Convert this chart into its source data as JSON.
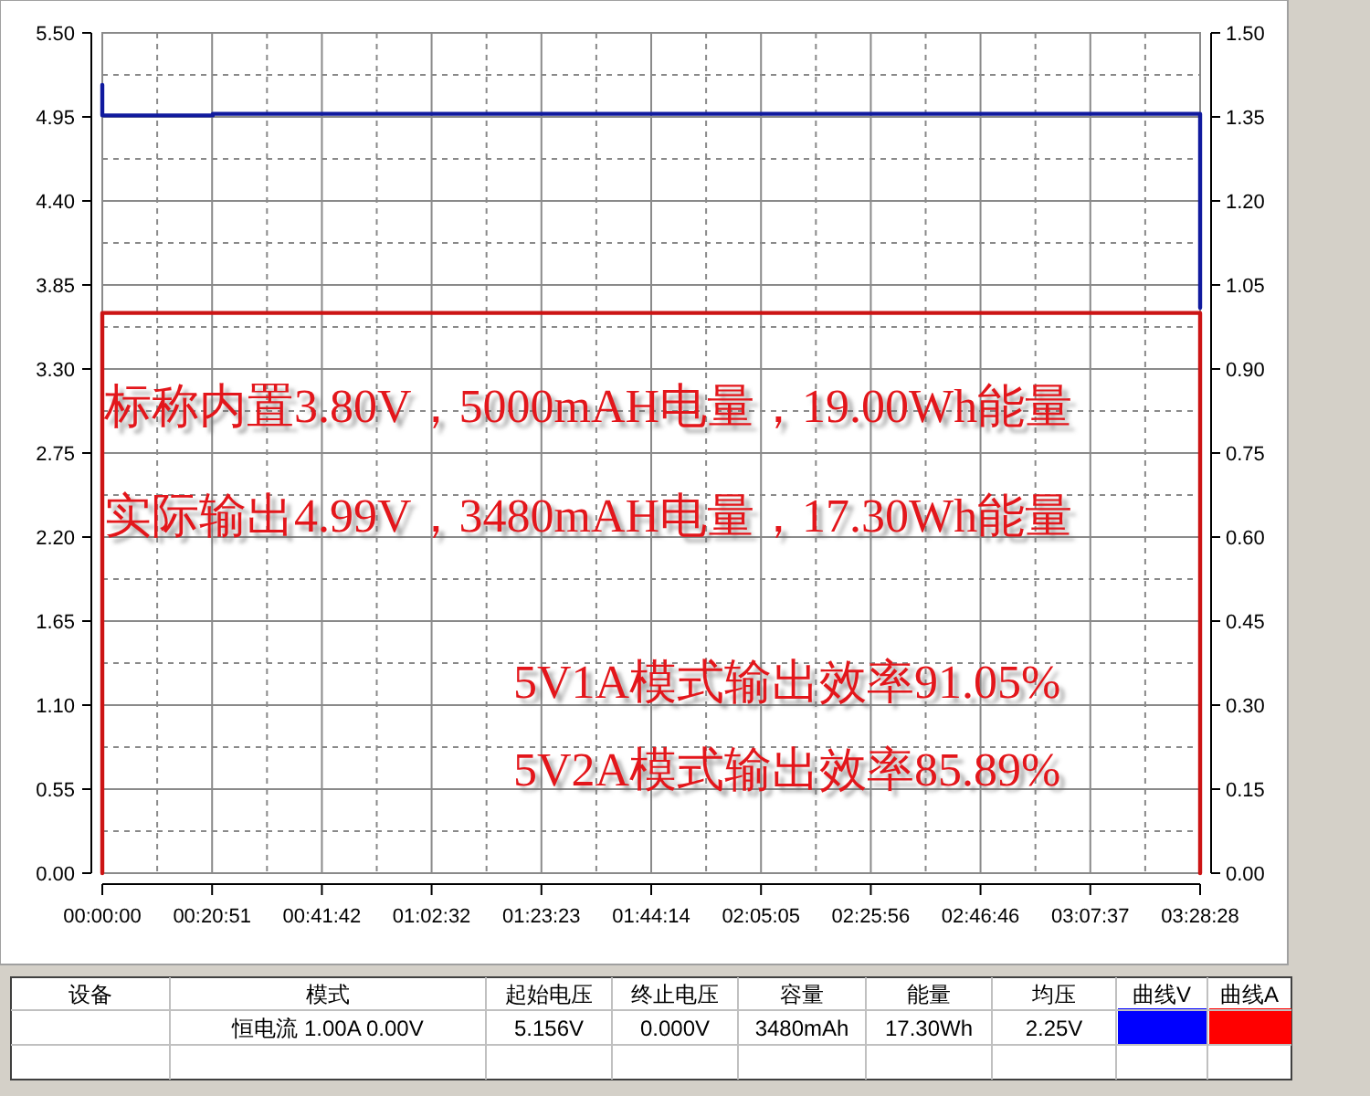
{
  "chart_data": [
    {
      "type": "line",
      "xlim": [
        0,
        3.47444
      ],
      "xticks": [
        {
          "value": 0,
          "label": "00:00:00"
        },
        {
          "value": 0.3475,
          "label": "00:20:51"
        },
        {
          "value": 0.695,
          "label": "00:41:42"
        },
        {
          "value": 1.04222,
          "label": "01:02:32"
        },
        {
          "value": 1.38972,
          "label": "01:23:23"
        },
        {
          "value": 1.73722,
          "label": "01:44:14"
        },
        {
          "value": 2.08472,
          "label": "02:05:05"
        },
        {
          "value": 2.43222,
          "label": "02:25:56"
        },
        {
          "value": 2.77944,
          "label": "02:46:46"
        },
        {
          "value": 3.12694,
          "label": "03:07:37"
        },
        {
          "value": 3.47444,
          "label": "03:28:28"
        }
      ],
      "ylim": [
        0,
        5.5
      ],
      "yticks": [
        {
          "value": 0,
          "label": "0.00"
        },
        {
          "value": 0.55,
          "label": "0.55"
        },
        {
          "value": 1.1,
          "label": "1.10"
        },
        {
          "value": 1.65,
          "label": "1.65"
        },
        {
          "value": 2.2,
          "label": "2.20"
        },
        {
          "value": 2.75,
          "label": "2.75"
        },
        {
          "value": 3.3,
          "label": "3.30"
        },
        {
          "value": 3.85,
          "label": "3.85"
        },
        {
          "value": 4.4,
          "label": "4.40"
        },
        {
          "value": 4.95,
          "label": "4.95"
        },
        {
          "value": 5.5,
          "label": "5.50"
        }
      ],
      "y2lim": [
        0,
        1.5
      ],
      "y2ticks": [
        {
          "value": 0,
          "label": "0.00"
        },
        {
          "value": 0.15,
          "label": "0.15"
        },
        {
          "value": 0.3,
          "label": "0.30"
        },
        {
          "value": 0.45,
          "label": "0.45"
        },
        {
          "value": 0.6,
          "label": "0.60"
        },
        {
          "value": 0.75,
          "label": "0.75"
        },
        {
          "value": 0.9,
          "label": "0.90"
        },
        {
          "value": 1.05,
          "label": "1.05"
        },
        {
          "value": 1.2,
          "label": "1.20"
        },
        {
          "value": 1.35,
          "label": "1.35"
        },
        {
          "value": 1.5,
          "label": "1.50"
        }
      ],
      "grid": true,
      "series": [
        {
          "color": "#101a9e",
          "x": [
            0,
            0,
            0.35,
            0.35,
            3.47444,
            3.47444
          ],
          "values": [
            5.16,
            4.96,
            4.96,
            4.97,
            4.97,
            3.7
          ]
        },
        {
          "color": "#cc1414",
          "axis": "y2",
          "x": [
            0,
            0,
            1.73722,
            3.47444,
            3.47444
          ],
          "values": [
            0,
            1.0,
            1.0,
            1.0,
            0
          ]
        }
      ],
      "annotations": [
        "标称内置3.80V，5000mAH电量，19.00Wh能量",
        "实际输出4.99V，3480mAH电量，17.30Wh能量",
        "5V1A模式输出效率91.05%",
        "5V2A模式输出效率85.89%"
      ]
    },
    {
      "type": "other",
      "categories": [
        "设备",
        "模式",
        "起始电压",
        "终止电压",
        "容量",
        "能量",
        "均压",
        "曲线V",
        "曲线A"
      ],
      "cell_labels": [
        [
          null,
          "恒电流 1.00A 0.00V",
          "5.156V",
          "0.000V",
          "3480mAh",
          "17.30Wh",
          "2.25V",
          null,
          null
        ],
        [
          null,
          null,
          null,
          null,
          null,
          null,
          null,
          null,
          null
        ]
      ],
      "colors": [
        null,
        null,
        null,
        null,
        null,
        null,
        null,
        "#0000ff",
        "#ff0000"
      ]
    }
  ]
}
